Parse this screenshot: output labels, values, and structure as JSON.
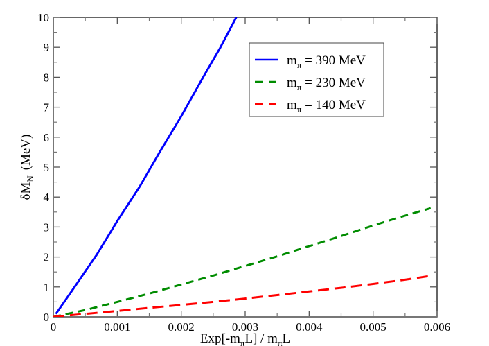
{
  "chart_data": {
    "type": "line",
    "title": "",
    "xlabel": "Exp[-m_πL] / m_πL",
    "xlabel_parts": {
      "pre": "Exp[-m",
      "sub1": "π",
      "mid": "L] / m",
      "sub2": "π",
      "post": "L"
    },
    "ylabel": "δM_N (MeV)",
    "ylabel_parts": {
      "main": "δM",
      "sub": "N",
      "unit": "(MeV)"
    },
    "xlim": [
      0,
      0.006
    ],
    "ylim": [
      0,
      10
    ],
    "grid": false,
    "legend_position": "upper right (inside)",
    "x_ticks": [
      "0",
      "0.001",
      "0.002",
      "0.003",
      "0.004",
      "0.005",
      "0.006"
    ],
    "y_ticks": [
      "0",
      "1",
      "2",
      "3",
      "4",
      "5",
      "6",
      "7",
      "8",
      "9",
      "10"
    ],
    "series": [
      {
        "name": "m_π = 390 MeV",
        "legend_parts": {
          "pre": "m",
          "sub": "π",
          "post": " = 390 MeV"
        },
        "color": "#0000ff",
        "style": "solid",
        "x": [
          4e-05,
          0.0003,
          0.00068,
          0.001,
          0.00135,
          0.00166,
          0.002,
          0.00235,
          0.0026,
          0.00286
        ],
        "y": [
          0.1,
          0.9,
          2.08,
          3.2,
          4.35,
          5.49,
          6.7,
          8.03,
          8.95,
          10.0
        ]
      },
      {
        "name": "m_π = 230 MeV",
        "legend_parts": {
          "pre": "m",
          "sub": "π",
          "post": " = 230 MeV"
        },
        "color": "#008c00",
        "style": "dashed",
        "x": [
          0.0,
          0.0005,
          0.001,
          0.0015,
          0.002,
          0.0025,
          0.003,
          0.0035,
          0.004,
          0.0045,
          0.005,
          0.0055,
          0.0059
        ],
        "y": [
          0.0,
          0.23,
          0.5,
          0.78,
          1.08,
          1.38,
          1.7,
          2.02,
          2.36,
          2.7,
          3.05,
          3.38,
          3.63
        ]
      },
      {
        "name": "m_π = 140 MeV",
        "legend_parts": {
          "pre": "m",
          "sub": "π",
          "post": " = 140 MeV"
        },
        "color": "#ff0000",
        "style": "long-dashed",
        "x": [
          0.0,
          0.0005,
          0.001,
          0.0015,
          0.002,
          0.0025,
          0.003,
          0.0035,
          0.004,
          0.0045,
          0.005,
          0.0055,
          0.0059
        ],
        "y": [
          0.0,
          0.1,
          0.2,
          0.3,
          0.4,
          0.5,
          0.61,
          0.73,
          0.85,
          0.97,
          1.1,
          1.24,
          1.37
        ]
      }
    ]
  }
}
